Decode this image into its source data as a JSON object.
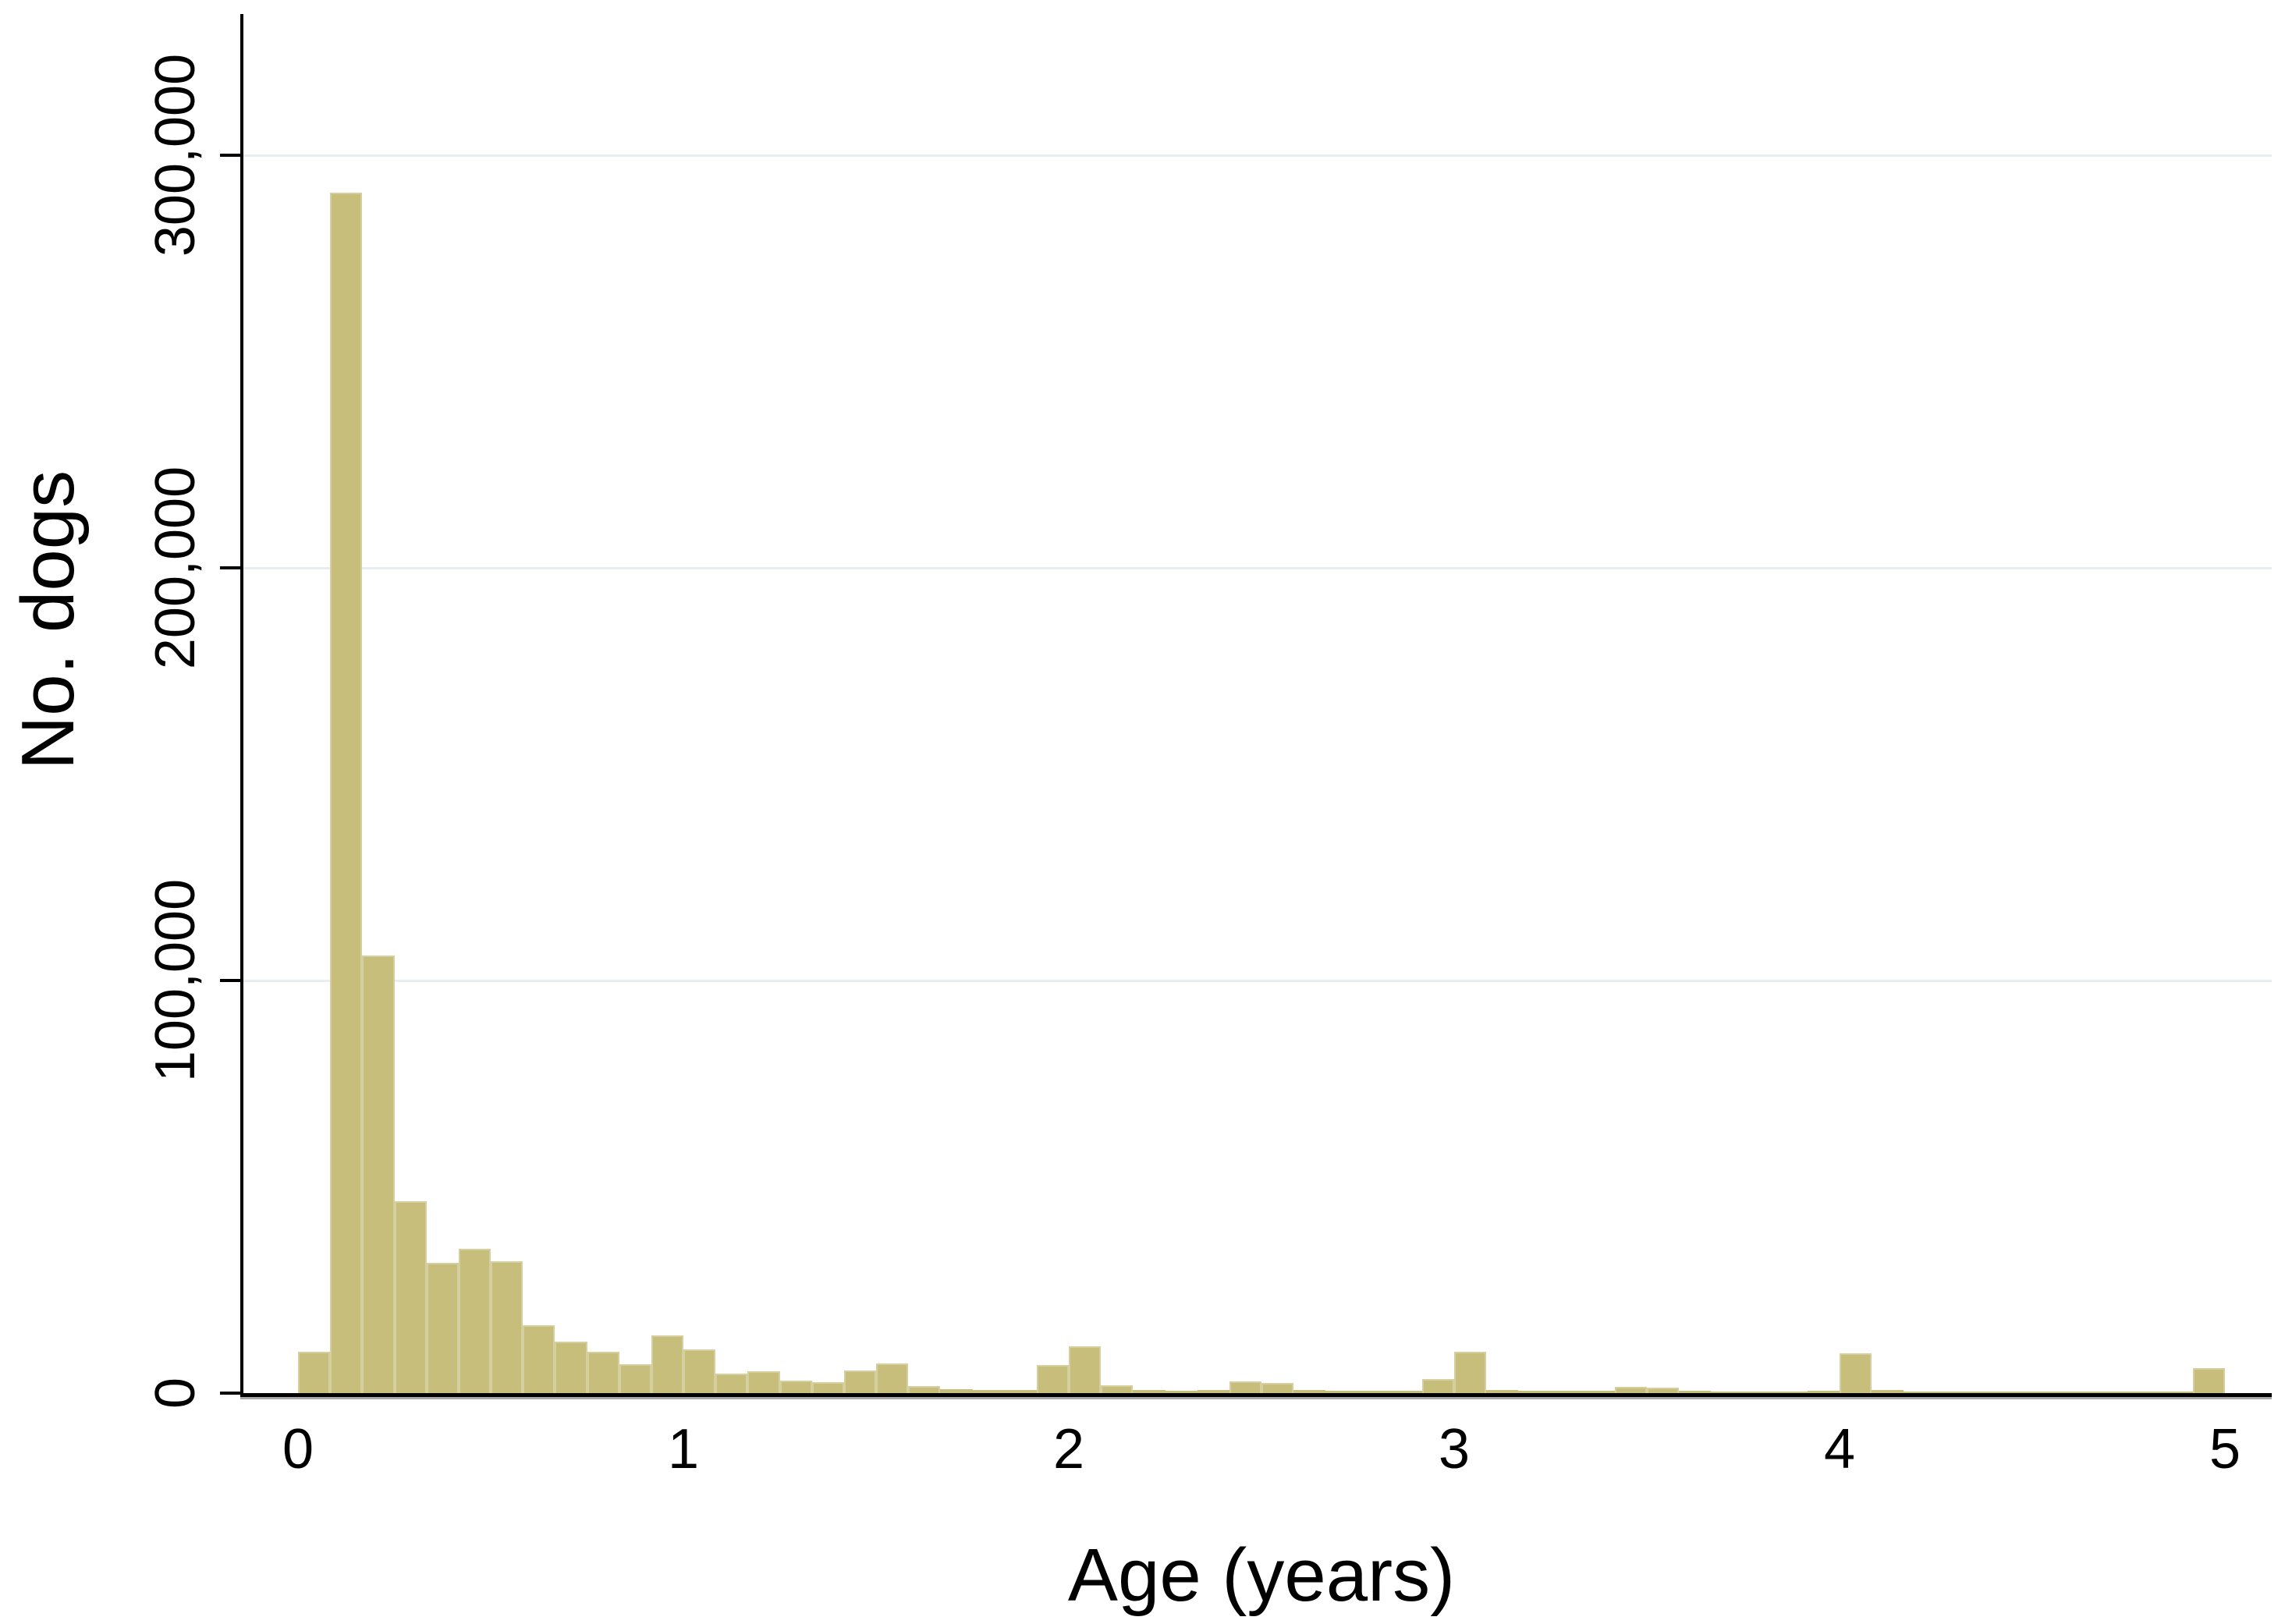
{
  "chart_data": {
    "type": "bar",
    "title": "",
    "xlabel": "Age (years)",
    "ylabel": "No. dogs",
    "x_ticks": [
      "0",
      "1",
      "2",
      "3",
      "4",
      "5"
    ],
    "x_tick_values": [
      0,
      1,
      2,
      3,
      4,
      5
    ],
    "y_ticks": [
      {
        "value": 0,
        "label": "0"
      },
      {
        "value": 100000,
        "label": "100,000"
      },
      {
        "value": 200000,
        "label": "200,000"
      },
      {
        "value": 300000,
        "label": "300,000"
      }
    ],
    "xlim": [
      -0.15,
      5.12
    ],
    "ylim": [
      0,
      332000
    ],
    "grid": "horizontal-light",
    "legend": "none",
    "bin_width_years": 0.0833,
    "bars": [
      {
        "age": 0.0,
        "count": 10000
      },
      {
        "age": 0.0833,
        "count": 291000
      },
      {
        "age": 0.1667,
        "count": 106000
      },
      {
        "age": 0.25,
        "count": 46500
      },
      {
        "age": 0.3333,
        "count": 31500
      },
      {
        "age": 0.4167,
        "count": 35000
      },
      {
        "age": 0.5,
        "count": 32000
      },
      {
        "age": 0.5833,
        "count": 16500
      },
      {
        "age": 0.6667,
        "count": 12500
      },
      {
        "age": 0.75,
        "count": 10000
      },
      {
        "age": 0.8333,
        "count": 7000
      },
      {
        "age": 0.9167,
        "count": 14000
      },
      {
        "age": 1.0,
        "count": 10500
      },
      {
        "age": 1.0833,
        "count": 4700
      },
      {
        "age": 1.1667,
        "count": 5300
      },
      {
        "age": 1.25,
        "count": 3000
      },
      {
        "age": 1.3333,
        "count": 2600
      },
      {
        "age": 1.4167,
        "count": 5500
      },
      {
        "age": 1.5,
        "count": 7200
      },
      {
        "age": 1.5833,
        "count": 1700
      },
      {
        "age": 1.6667,
        "count": 1000
      },
      {
        "age": 1.75,
        "count": 800
      },
      {
        "age": 1.8333,
        "count": 700
      },
      {
        "age": 1.9167,
        "count": 6800
      },
      {
        "age": 2.0,
        "count": 11300
      },
      {
        "age": 2.0833,
        "count": 1900
      },
      {
        "age": 2.1667,
        "count": 700
      },
      {
        "age": 2.25,
        "count": 600
      },
      {
        "age": 2.3333,
        "count": 700
      },
      {
        "age": 2.4167,
        "count": 2800
      },
      {
        "age": 2.5,
        "count": 2500
      },
      {
        "age": 2.5833,
        "count": 700
      },
      {
        "age": 2.6667,
        "count": 500
      },
      {
        "age": 2.75,
        "count": 500
      },
      {
        "age": 2.8333,
        "count": 600
      },
      {
        "age": 2.9167,
        "count": 3400
      },
      {
        "age": 3.0,
        "count": 10000
      },
      {
        "age": 3.0833,
        "count": 700
      },
      {
        "age": 3.1667,
        "count": 500
      },
      {
        "age": 3.25,
        "count": 500
      },
      {
        "age": 3.3333,
        "count": 600
      },
      {
        "age": 3.4167,
        "count": 1500
      },
      {
        "age": 3.5,
        "count": 1300
      },
      {
        "age": 3.5833,
        "count": 500
      },
      {
        "age": 3.6667,
        "count": 400
      },
      {
        "age": 3.75,
        "count": 400
      },
      {
        "age": 3.8333,
        "count": 400
      },
      {
        "age": 3.9167,
        "count": 500
      },
      {
        "age": 4.0,
        "count": 9600
      },
      {
        "age": 4.0833,
        "count": 700
      },
      {
        "age": 4.1667,
        "count": 400
      },
      {
        "age": 4.25,
        "count": 400
      },
      {
        "age": 4.3333,
        "count": 400
      },
      {
        "age": 4.4167,
        "count": 400
      },
      {
        "age": 4.5,
        "count": 400
      },
      {
        "age": 4.5833,
        "count": 400
      },
      {
        "age": 4.6667,
        "count": 400
      },
      {
        "age": 4.75,
        "count": 400
      },
      {
        "age": 4.8333,
        "count": 400
      },
      {
        "age": 4.9167,
        "count": 6000
      }
    ]
  },
  "colors": {
    "bar_fill": "#c6be7a",
    "bar_border": "#d5cfa0",
    "gridline": "#e6eef4",
    "axis": "#000000",
    "axis_shadow": "#a9a9a9",
    "text": "#000000",
    "background": "#ffffff"
  }
}
